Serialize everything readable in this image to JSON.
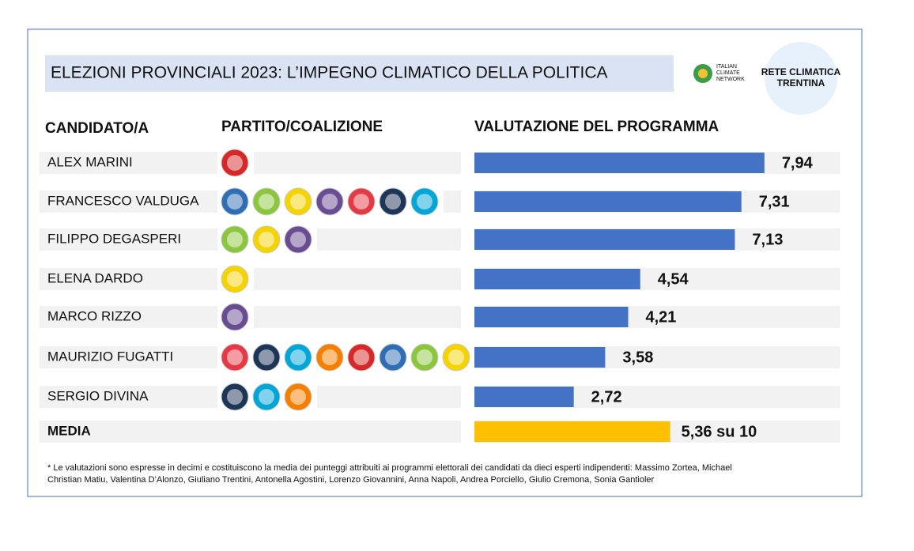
{
  "chart_data": {
    "type": "bar",
    "title": "ELEZIONI  PROVINCIALI 2023: L’IMPEGNO CLIMATICO DELLA POLITICA",
    "column_headers": [
      "CANDIDATO/A",
      "PARTITO/COALIZIONE",
      "VALUTAZIONE DEL PROGRAMMA"
    ],
    "categories": [
      "ALEX MARINI",
      "FRANCESCO VALDUGA",
      "FILIPPO DEGASPERI",
      "ELENA DARDO",
      "MARCO RIZZO",
      "MAURIZIO FUGATTI",
      "SERGIO DIVINA",
      "MEDIA"
    ],
    "values": [
      7.94,
      7.31,
      7.13,
      4.54,
      4.21,
      3.58,
      2.72,
      5.36
    ],
    "value_labels": [
      "7,94",
      "7,31",
      "7,13",
      "4,54",
      "4,21",
      "3,58",
      "2,72",
      "5,36 su 10"
    ],
    "colors": [
      "#4472c4",
      "#4472c4",
      "#4472c4",
      "#4472c4",
      "#4472c4",
      "#4472c4",
      "#4472c4",
      "#ffc000"
    ],
    "xlim": [
      0,
      10
    ],
    "logos": [
      [
        "ITALIAN",
        "CLIMATE",
        "NETWORK"
      ],
      [
        "RETE CLIMATICA",
        "TRENTINA"
      ]
    ],
    "footnote": [
      "* Le valutazioni sono espresse in decimi e costituiscono la media dei punteggi attribuiti ai programmi elettorali dei candidati da dieci esperti indipendenti: Massimo Zortea, Michael",
      "Christian Matiu, Valentina D’Alonzo, Giuliano Trentini, Antonella Agostini, Lorenzo Giovannini, Anna Napoli, Andrea Porciello, Giulio Cremona, Sonia Gantioler"
    ]
  }
}
